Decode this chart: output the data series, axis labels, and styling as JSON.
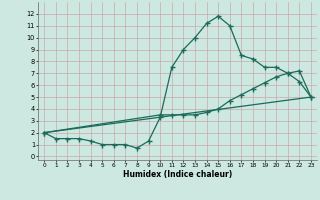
{
  "xlabel": "Humidex (Indice chaleur)",
  "xlim": [
    -0.5,
    23.5
  ],
  "ylim": [
    -0.3,
    13
  ],
  "xticks": [
    0,
    1,
    2,
    3,
    4,
    5,
    6,
    7,
    8,
    9,
    10,
    11,
    12,
    13,
    14,
    15,
    16,
    17,
    18,
    19,
    20,
    21,
    22,
    23
  ],
  "yticks": [
    0,
    1,
    2,
    3,
    4,
    5,
    6,
    7,
    8,
    9,
    10,
    11,
    12
  ],
  "bg_color": "#cce8e0",
  "grid_color": "#c8aaaa",
  "line_color": "#1a6b5a",
  "line1_x": [
    0,
    1,
    2,
    3,
    4,
    5,
    6,
    7,
    8,
    9,
    10,
    11,
    12,
    13,
    14,
    15,
    16,
    17,
    18,
    19,
    20,
    21,
    22,
    23
  ],
  "line1_y": [
    2,
    1.5,
    1.5,
    1.5,
    1.3,
    1.0,
    1.0,
    1.0,
    0.7,
    1.3,
    3.3,
    7.5,
    9.0,
    10.0,
    11.2,
    11.8,
    11.0,
    8.5,
    8.2,
    7.5,
    7.5,
    7.0,
    6.3,
    5.0
  ],
  "line2_x": [
    0,
    10,
    11,
    12,
    13,
    14,
    15,
    16,
    17,
    18,
    19,
    20,
    21,
    22,
    23
  ],
  "line2_y": [
    2,
    3.5,
    3.5,
    3.5,
    3.5,
    3.7,
    4.0,
    4.7,
    5.2,
    5.7,
    6.2,
    6.7,
    7.0,
    7.2,
    5.0
  ],
  "line3_x": [
    0,
    23
  ],
  "line3_y": [
    2,
    5.0
  ],
  "marker_size": 2.0,
  "line_width": 0.9
}
